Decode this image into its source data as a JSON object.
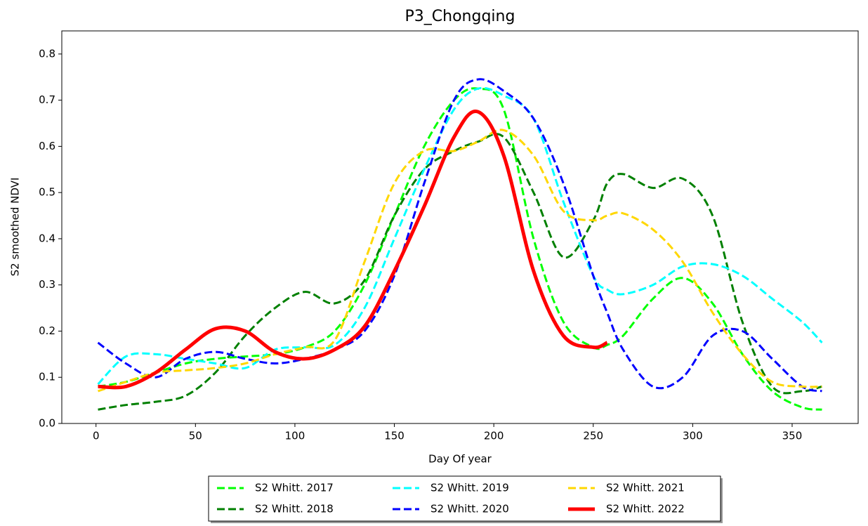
{
  "chart_data": {
    "type": "line",
    "title": "P3_Chongqing",
    "x_label": "Day Of year",
    "y_label": "S2 smoothed NDVI",
    "x": [
      1,
      15,
      30,
      45,
      60,
      75,
      90,
      105,
      120,
      135,
      150,
      165,
      180,
      192,
      205,
      220,
      235,
      250,
      257,
      265,
      280,
      295,
      310,
      325,
      340,
      355,
      365
    ],
    "series": [
      {
        "name": "S2 Whitt. 2017",
        "color": "#00ff00",
        "linestyle": "dashed",
        "values": [
          0.08,
          0.09,
          0.11,
          0.13,
          0.14,
          0.145,
          0.15,
          0.165,
          0.2,
          0.3,
          0.45,
          0.6,
          0.7,
          0.725,
          0.68,
          0.4,
          0.22,
          0.165,
          0.17,
          0.19,
          0.27,
          0.315,
          0.26,
          0.15,
          0.07,
          0.035,
          0.03
        ]
      },
      {
        "name": "S2 Whitt. 2018",
        "color": "#008000",
        "linestyle": "dashed",
        "values": [
          0.03,
          0.04,
          0.047,
          0.06,
          0.11,
          0.19,
          0.25,
          0.285,
          0.26,
          0.31,
          0.45,
          0.55,
          0.59,
          0.61,
          0.62,
          0.5,
          0.36,
          0.44,
          0.52,
          0.54,
          0.51,
          0.53,
          0.45,
          0.22,
          0.08,
          0.07,
          0.08
        ]
      },
      {
        "name": "S2 Whitt. 2019",
        "color": "#00ffff",
        "linestyle": "dashed",
        "values": [
          0.085,
          0.145,
          0.15,
          0.14,
          0.13,
          0.12,
          0.16,
          0.165,
          0.17,
          0.25,
          0.4,
          0.55,
          0.68,
          0.725,
          0.71,
          0.66,
          0.48,
          0.32,
          0.29,
          0.28,
          0.3,
          0.34,
          0.345,
          0.32,
          0.27,
          0.22,
          0.175
        ]
      },
      {
        "name": "S2 Whitt. 2020",
        "color": "#0000ff",
        "linestyle": "dashed",
        "values": [
          0.175,
          0.13,
          0.1,
          0.14,
          0.155,
          0.14,
          0.13,
          0.14,
          0.16,
          0.2,
          0.32,
          0.52,
          0.7,
          0.745,
          0.72,
          0.66,
          0.52,
          0.32,
          0.24,
          0.16,
          0.08,
          0.1,
          0.19,
          0.2,
          0.14,
          0.08,
          0.07
        ]
      },
      {
        "name": "S2 Whitt. 2021",
        "color": "#ffd700",
        "linestyle": "dashed",
        "values": [
          0.07,
          0.09,
          0.11,
          0.115,
          0.12,
          0.13,
          0.15,
          0.165,
          0.18,
          0.35,
          0.52,
          0.59,
          0.59,
          0.61,
          0.635,
          0.58,
          0.46,
          0.44,
          0.45,
          0.455,
          0.42,
          0.35,
          0.24,
          0.15,
          0.09,
          0.08,
          0.08
        ]
      },
      {
        "name": "S2 Whitt. 2022",
        "color": "#ff0000",
        "linestyle": "solid",
        "values": [
          0.08,
          0.08,
          0.11,
          0.16,
          0.205,
          0.2,
          0.155,
          0.14,
          0.16,
          0.21,
          0.33,
          0.47,
          0.62,
          0.675,
          0.58,
          0.33,
          0.19,
          0.165,
          0.175,
          null,
          null,
          null,
          null,
          null,
          null,
          null,
          null
        ]
      }
    ],
    "xlim": [
      -17.2,
      383.2
    ],
    "ylim": [
      0,
      0.85
    ],
    "xticks": [
      0,
      50,
      100,
      150,
      200,
      250,
      300,
      350
    ],
    "yticks": [
      {
        "value": 0,
        "label": "0.0"
      },
      0.1,
      0.2,
      0.3,
      0.4,
      0.5,
      0.6,
      0.7,
      0.8
    ],
    "legend": "bottom"
  }
}
